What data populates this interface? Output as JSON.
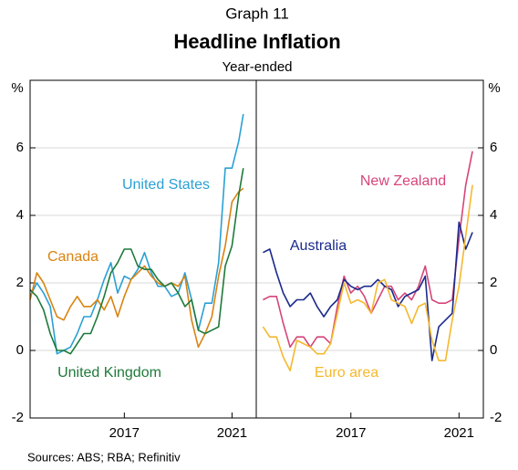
{
  "header": {
    "graph": "Graph 11",
    "title": "Headline Inflation",
    "subtitle": "Year-ended"
  },
  "chart_data": [
    {
      "type": "line",
      "y_label": "%",
      "xlim": [
        2014,
        2022.4
      ],
      "ylim": [
        -2,
        8
      ],
      "yticks": [
        -2,
        0,
        2,
        4,
        6
      ],
      "grid": true,
      "xticks": [
        {
          "value": 2017.5,
          "label": "2017"
        },
        {
          "value": 2021.5,
          "label": "2021"
        }
      ],
      "series": [
        {
          "name": "United States",
          "color": "#2aa0d4",
          "x": [
            2014.0,
            2014.25,
            2014.5,
            2014.75,
            2015.0,
            2015.25,
            2015.5,
            2015.75,
            2016.0,
            2016.25,
            2016.5,
            2016.75,
            2017.0,
            2017.25,
            2017.5,
            2017.75,
            2018.0,
            2018.25,
            2018.5,
            2018.75,
            2019.0,
            2019.25,
            2019.5,
            2019.75,
            2020.0,
            2020.25,
            2020.5,
            2020.75,
            2021.0,
            2021.25,
            2021.5,
            2021.75,
            2021.92
          ],
          "values": [
            1.6,
            2.0,
            1.7,
            1.3,
            -0.1,
            0.0,
            0.1,
            0.5,
            1.0,
            1.0,
            1.5,
            2.1,
            2.6,
            1.7,
            2.2,
            2.1,
            2.4,
            2.9,
            2.3,
            1.9,
            1.9,
            1.6,
            1.7,
            2.3,
            1.5,
            0.6,
            1.4,
            1.4,
            2.6,
            5.4,
            5.4,
            6.2,
            7.0
          ]
        },
        {
          "name": "Canada",
          "color": "#d98310",
          "x": [
            2014.0,
            2014.25,
            2014.5,
            2014.75,
            2015.0,
            2015.25,
            2015.5,
            2015.75,
            2016.0,
            2016.25,
            2016.5,
            2016.75,
            2017.0,
            2017.25,
            2017.5,
            2017.75,
            2018.0,
            2018.25,
            2018.5,
            2018.75,
            2019.0,
            2019.25,
            2019.5,
            2019.75,
            2020.0,
            2020.25,
            2020.5,
            2020.75,
            2021.0,
            2021.25,
            2021.5,
            2021.75,
            2021.92
          ],
          "values": [
            1.5,
            2.3,
            2.0,
            1.5,
            1.0,
            0.9,
            1.3,
            1.6,
            1.3,
            1.3,
            1.5,
            1.2,
            1.6,
            1.0,
            1.6,
            2.1,
            2.3,
            2.5,
            2.2,
            2.0,
            1.9,
            2.0,
            1.9,
            2.2,
            0.9,
            0.1,
            0.5,
            1.0,
            2.2,
            3.1,
            4.4,
            4.7,
            4.8
          ]
        },
        {
          "name": "United Kingdom",
          "color": "#1e7a3a",
          "x": [
            2014.0,
            2014.25,
            2014.5,
            2014.75,
            2015.0,
            2015.25,
            2015.5,
            2015.75,
            2016.0,
            2016.25,
            2016.5,
            2016.75,
            2017.0,
            2017.25,
            2017.5,
            2017.75,
            2018.0,
            2018.25,
            2018.5,
            2018.75,
            2019.0,
            2019.25,
            2019.5,
            2019.75,
            2020.0,
            2020.25,
            2020.5,
            2020.75,
            2021.0,
            2021.25,
            2021.5,
            2021.75,
            2021.92
          ],
          "values": [
            1.8,
            1.6,
            1.2,
            0.5,
            0.0,
            0.0,
            -0.1,
            0.2,
            0.5,
            0.5,
            1.0,
            1.6,
            2.3,
            2.6,
            3.0,
            3.0,
            2.5,
            2.4,
            2.4,
            2.1,
            1.9,
            2.0,
            1.7,
            1.3,
            1.5,
            0.6,
            0.5,
            0.6,
            0.7,
            2.5,
            3.1,
            4.6,
            5.4
          ]
        }
      ]
    },
    {
      "type": "line",
      "y_label": "%",
      "xlim": [
        2014,
        2022.4
      ],
      "ylim": [
        -2,
        8
      ],
      "yticks": [
        -2,
        0,
        2,
        4,
        6
      ],
      "grid": true,
      "xticks": [
        {
          "value": 2017.5,
          "label": "2017"
        },
        {
          "value": 2021.5,
          "label": "2021"
        }
      ],
      "series": [
        {
          "name": "New Zealand",
          "color": "#d6457a",
          "x": [
            2014.25,
            2014.5,
            2014.75,
            2015.0,
            2015.25,
            2015.5,
            2015.75,
            2016.0,
            2016.25,
            2016.5,
            2016.75,
            2017.0,
            2017.25,
            2017.5,
            2017.75,
            2018.0,
            2018.25,
            2018.5,
            2018.75,
            2019.0,
            2019.25,
            2019.5,
            2019.75,
            2020.0,
            2020.25,
            2020.5,
            2020.75,
            2021.0,
            2021.25,
            2021.5,
            2021.75,
            2022.0
          ],
          "values": [
            1.5,
            1.6,
            1.6,
            0.8,
            0.1,
            0.4,
            0.4,
            0.1,
            0.4,
            0.4,
            0.2,
            1.3,
            2.2,
            1.7,
            1.9,
            1.6,
            1.1,
            1.5,
            1.9,
            1.9,
            1.5,
            1.7,
            1.5,
            1.9,
            2.5,
            1.5,
            1.4,
            1.4,
            1.5,
            3.3,
            4.9,
            5.9
          ]
        },
        {
          "name": "Australia",
          "color": "#1a2a8c",
          "x": [
            2014.25,
            2014.5,
            2014.75,
            2015.0,
            2015.25,
            2015.5,
            2015.75,
            2016.0,
            2016.25,
            2016.5,
            2016.75,
            2017.0,
            2017.25,
            2017.5,
            2017.75,
            2018.0,
            2018.25,
            2018.5,
            2018.75,
            2019.0,
            2019.25,
            2019.5,
            2019.75,
            2020.0,
            2020.25,
            2020.5,
            2020.75,
            2021.0,
            2021.25,
            2021.5,
            2021.75,
            2022.0
          ],
          "values": [
            2.9,
            3.0,
            2.3,
            1.7,
            1.3,
            1.5,
            1.5,
            1.7,
            1.3,
            1.0,
            1.3,
            1.5,
            2.1,
            1.9,
            1.8,
            1.9,
            1.9,
            2.1,
            1.9,
            1.8,
            1.3,
            1.6,
            1.7,
            1.8,
            2.2,
            -0.3,
            0.7,
            0.9,
            1.1,
            3.8,
            3.0,
            3.5
          ]
        },
        {
          "name": "Euro area",
          "color": "#f5b82e",
          "x": [
            2014.25,
            2014.5,
            2014.75,
            2015.0,
            2015.25,
            2015.5,
            2015.75,
            2016.0,
            2016.25,
            2016.5,
            2016.75,
            2017.0,
            2017.25,
            2017.5,
            2017.75,
            2018.0,
            2018.25,
            2018.5,
            2018.75,
            2019.0,
            2019.25,
            2019.5,
            2019.75,
            2020.0,
            2020.25,
            2020.5,
            2020.75,
            2021.0,
            2021.25,
            2021.5,
            2021.75,
            2022.0
          ],
          "values": [
            0.7,
            0.4,
            0.4,
            -0.2,
            -0.6,
            0.3,
            0.2,
            0.1,
            -0.1,
            -0.1,
            0.2,
            1.1,
            2.0,
            1.4,
            1.5,
            1.4,
            1.1,
            2.0,
            2.1,
            1.5,
            1.4,
            1.3,
            0.8,
            1.3,
            1.4,
            0.3,
            -0.3,
            -0.3,
            0.9,
            1.9,
            3.4,
            4.9
          ]
        }
      ]
    }
  ],
  "source": "Sources: ABS; RBA; Refinitiv"
}
